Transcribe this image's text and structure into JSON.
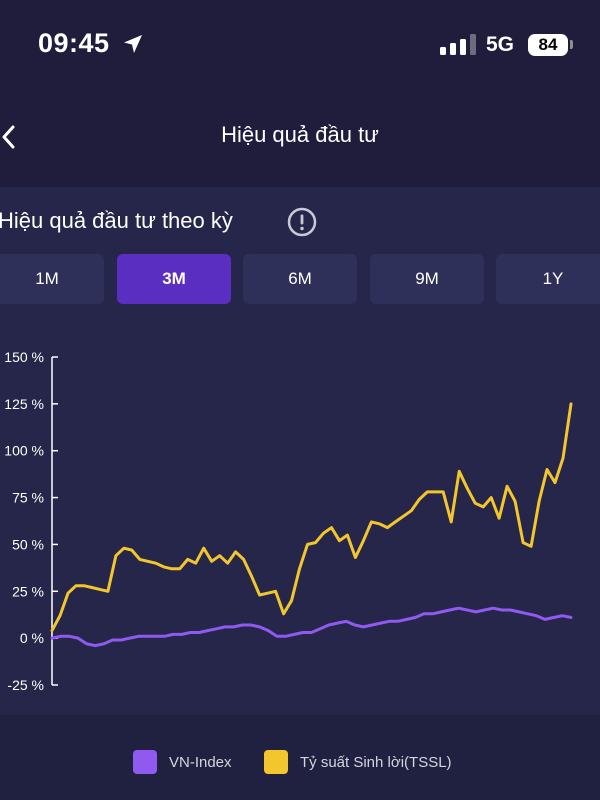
{
  "status_bar": {
    "time": "09:45",
    "network": "5G",
    "battery": "84"
  },
  "nav": {
    "title": "Hiệu quả đầu tư"
  },
  "section": {
    "title": "Hiệu quả đầu tư theo kỳ"
  },
  "tabs": [
    {
      "label": "1M",
      "active": false
    },
    {
      "label": "3M",
      "active": true
    },
    {
      "label": "6M",
      "active": false
    },
    {
      "label": "9M",
      "active": false
    },
    {
      "label": "1Y",
      "active": false
    }
  ],
  "colors": {
    "vn_index": "#9059ef",
    "tssl": "#f2c62c",
    "active_tab": "#5b2ec2"
  },
  "chart_data": {
    "type": "line",
    "y_ticks": [
      "150 %",
      "125 %",
      "100 %",
      "75 %",
      "50 %",
      "25 %",
      "0 %",
      "-25 %"
    ],
    "ylim": [
      -25,
      150
    ],
    "grid": false,
    "legend_position": "bottom",
    "series": [
      {
        "name": "VN-Index",
        "color": "#9059ef",
        "values": [
          0,
          1,
          1,
          0,
          -3,
          -4,
          -3,
          -1,
          -1,
          0,
          1,
          1,
          1,
          1,
          2,
          2,
          3,
          3,
          4,
          5,
          6,
          6,
          7,
          7,
          6,
          4,
          1,
          1,
          2,
          3,
          3,
          5,
          7,
          8,
          9,
          7,
          6,
          7,
          8,
          9,
          9,
          10,
          11,
          13,
          13,
          14,
          15,
          16,
          15,
          14,
          15,
          16,
          15,
          15,
          14,
          13,
          12,
          10,
          11,
          12,
          11
        ]
      },
      {
        "name": "Tỷ suất Sinh lời(TSSL)",
        "color": "#f2c62c",
        "values": [
          4,
          12,
          24,
          28,
          28,
          27,
          26,
          25,
          44,
          48,
          47,
          42,
          41,
          40,
          38,
          37,
          37,
          42,
          40,
          48,
          41,
          44,
          40,
          46,
          42,
          33,
          23,
          24,
          25,
          13,
          20,
          37,
          50,
          51,
          56,
          59,
          52,
          55,
          43,
          52,
          62,
          61,
          59,
          62,
          65,
          68,
          74,
          78,
          78,
          78,
          62,
          89,
          80,
          72,
          70,
          75,
          64,
          81,
          73,
          51,
          49,
          73,
          90,
          83,
          96,
          125
        ]
      }
    ]
  }
}
